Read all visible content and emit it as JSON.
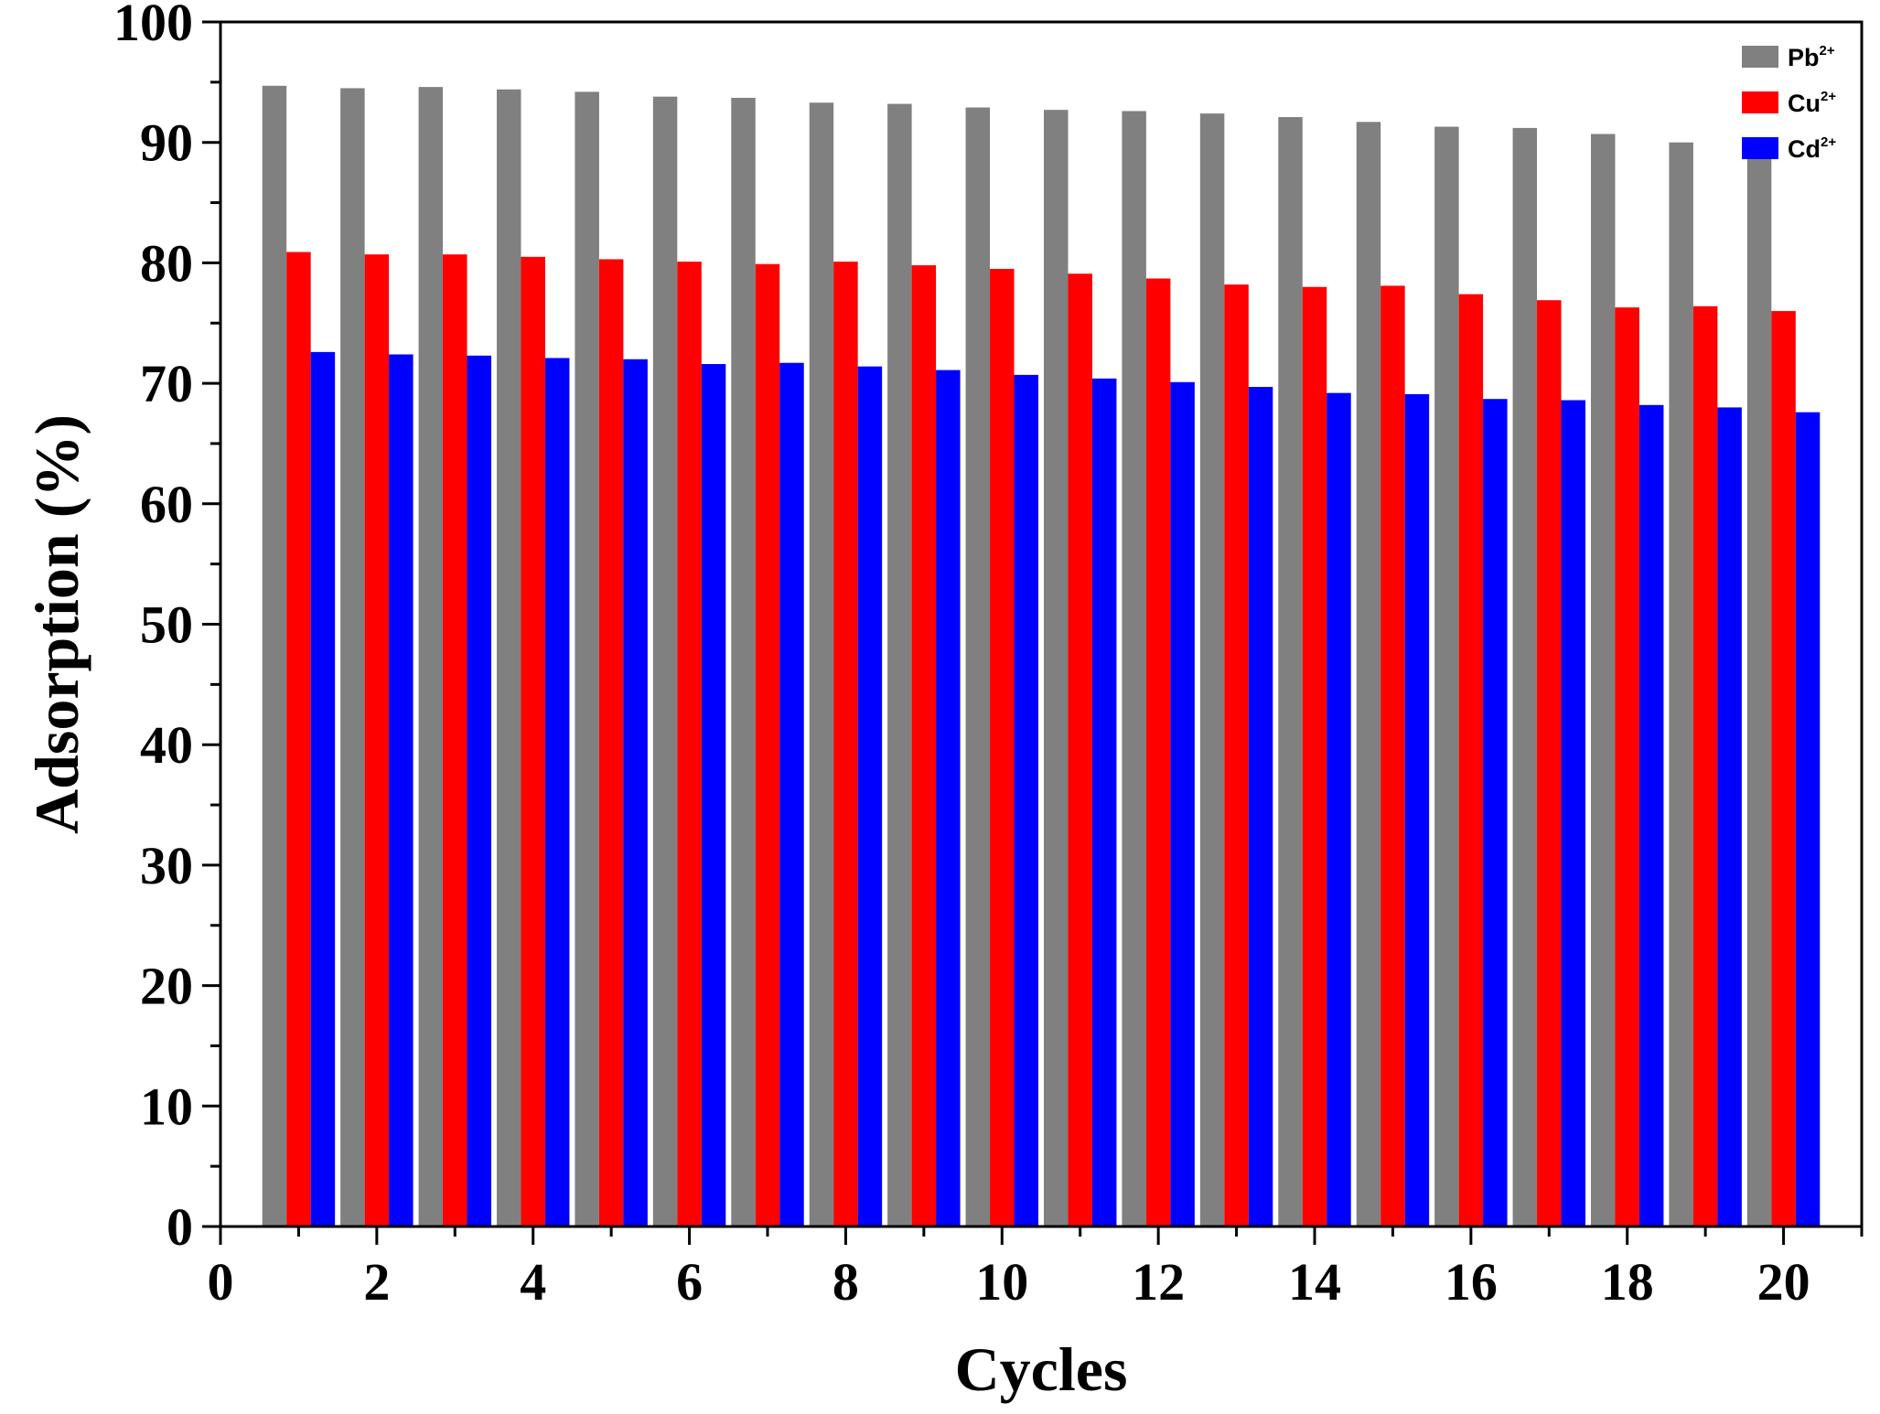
{
  "chart_data": {
    "type": "bar",
    "title": "",
    "xlabel": "Cycles",
    "ylabel": "Adsorption (%)",
    "x": [
      1,
      2,
      3,
      4,
      5,
      6,
      7,
      8,
      9,
      10,
      11,
      12,
      13,
      14,
      15,
      16,
      17,
      18,
      19,
      20
    ],
    "xlim": [
      0,
      21
    ],
    "ylim": [
      0,
      100
    ],
    "xticks": [
      "0",
      "2",
      "4",
      "6",
      "8",
      "10",
      "12",
      "14",
      "16",
      "18",
      "20"
    ],
    "yticks": [
      "0",
      "10",
      "20",
      "30",
      "40",
      "50",
      "60",
      "70",
      "80",
      "90",
      "100"
    ],
    "legend_position": "top-right",
    "grid": false,
    "series": [
      {
        "name": "Pb",
        "superscript": "2+",
        "color": "#808080",
        "values": [
          94.7,
          94.5,
          94.6,
          94.4,
          94.2,
          93.8,
          93.7,
          93.3,
          93.2,
          92.9,
          92.7,
          92.6,
          92.4,
          92.1,
          91.7,
          91.3,
          91.2,
          90.7,
          90.0,
          89.8
        ]
      },
      {
        "name": "Cu",
        "superscript": "2+",
        "color": "#ff0000",
        "values": [
          80.9,
          80.7,
          80.7,
          80.5,
          80.3,
          80.1,
          79.9,
          80.1,
          79.8,
          79.5,
          79.1,
          78.7,
          78.2,
          78.0,
          78.1,
          77.4,
          76.9,
          76.3,
          76.4,
          76.0
        ]
      },
      {
        "name": "Cd",
        "superscript": "2+",
        "color": "#0000ff",
        "values": [
          72.6,
          72.4,
          72.3,
          72.1,
          72.0,
          71.6,
          71.7,
          71.4,
          71.1,
          70.7,
          70.4,
          70.1,
          69.7,
          69.2,
          69.1,
          68.7,
          68.6,
          68.2,
          68.0,
          67.6
        ]
      }
    ]
  }
}
